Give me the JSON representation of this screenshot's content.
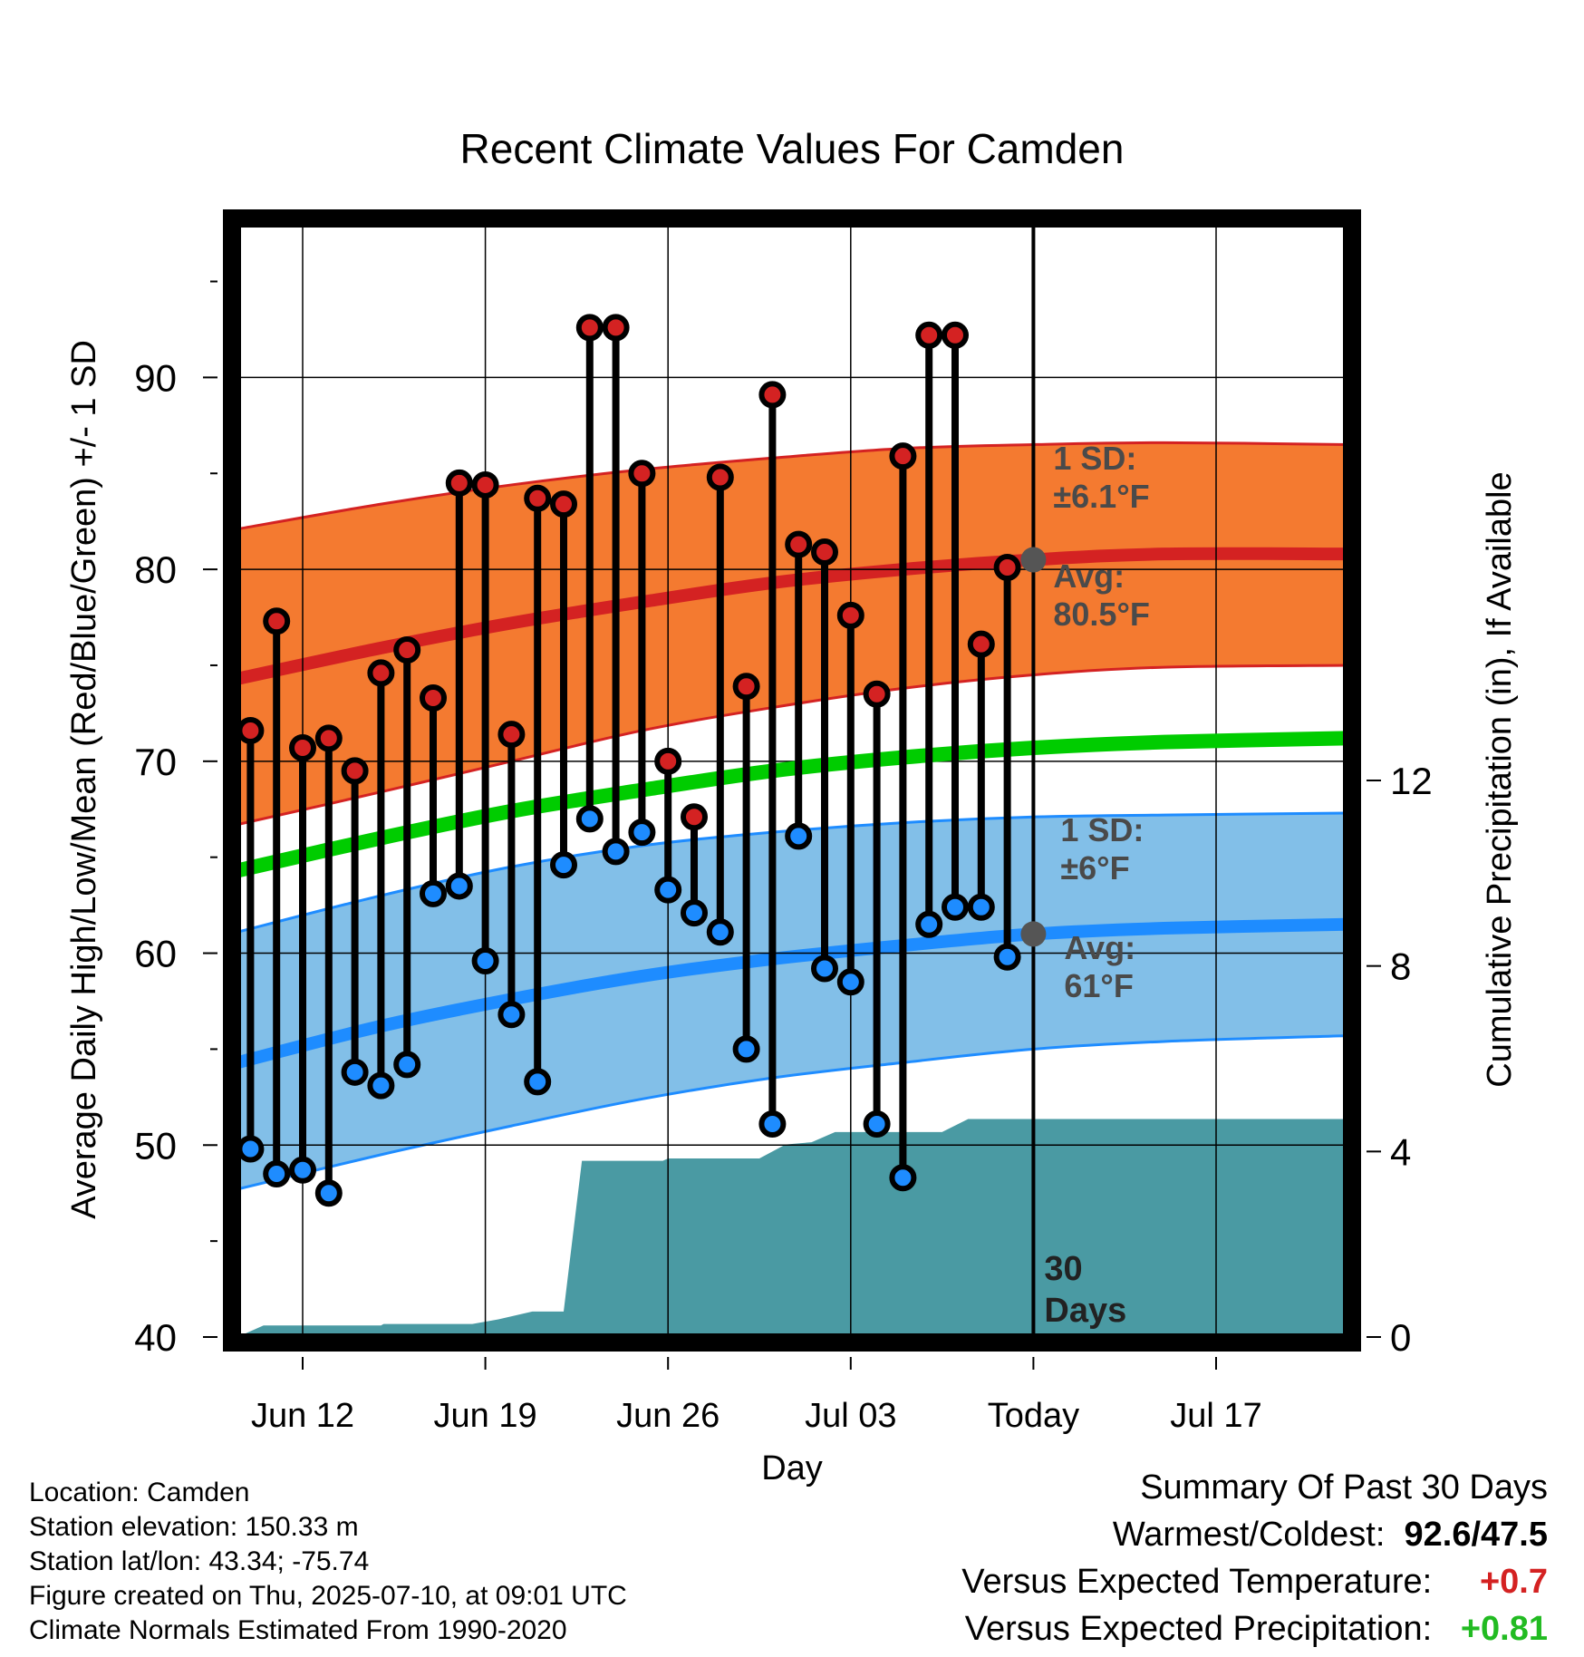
{
  "chart_data": {
    "type": "line",
    "title": "Recent Climate Values For Camden",
    "xlabel": "Day",
    "ylabel": "Average Daily High/Low/Mean (Red/Blue/Green) +/- 1 SD",
    "y2label": "Cumulative Precipitation (in), If Available",
    "ylim": [
      40,
      98
    ],
    "y2lim": [
      0,
      24
    ],
    "xlim": [
      -0.5,
      42
    ],
    "grid": true,
    "x_ticks": [
      {
        "x": 2,
        "label": "Jun 12"
      },
      {
        "x": 9,
        "label": "Jun 19"
      },
      {
        "x": 16,
        "label": "Jun 26"
      },
      {
        "x": 23,
        "label": "Jul 03"
      },
      {
        "x": 30,
        "label": "Today"
      },
      {
        "x": 37,
        "label": "Jul 17"
      }
    ],
    "y_ticks": [
      40,
      50,
      60,
      70,
      80,
      90
    ],
    "y2_ticks": [
      0,
      4,
      8,
      12
    ],
    "today_x": 30,
    "today_label": [
      "30",
      "Days"
    ],
    "normal_high": {
      "x": [
        -0.5,
        5,
        10,
        15,
        20,
        25,
        30,
        35,
        42
      ],
      "mean": [
        74.3,
        75.9,
        77.2,
        78.3,
        79.3,
        80.0,
        80.5,
        80.8,
        80.8
      ],
      "upper": [
        82.1,
        83.4,
        84.4,
        85.2,
        85.8,
        86.3,
        86.5,
        86.6,
        86.5
      ],
      "lower": [
        66.7,
        68.4,
        70.0,
        71.6,
        72.8,
        73.8,
        74.5,
        74.9,
        75.0
      ]
    },
    "normal_low": {
      "x": [
        -0.5,
        5,
        10,
        15,
        20,
        25,
        30,
        35,
        42
      ],
      "mean": [
        54.3,
        56.2,
        57.6,
        58.8,
        59.7,
        60.4,
        61.0,
        61.3,
        61.5
      ],
      "upper": [
        61.1,
        63.0,
        64.5,
        65.6,
        66.3,
        66.8,
        67.1,
        67.2,
        67.3
      ],
      "lower": [
        47.7,
        49.5,
        51.0,
        52.4,
        53.5,
        54.3,
        55.0,
        55.4,
        55.7
      ]
    },
    "normal_mean": {
      "x": [
        -0.5,
        5,
        10,
        15,
        20,
        25,
        30,
        35,
        42
      ],
      "values": [
        64.3,
        66.0,
        67.4,
        68.5,
        69.5,
        70.2,
        70.7,
        71.0,
        71.2
      ]
    },
    "daily": {
      "x": [
        0,
        1,
        2,
        3,
        4,
        5,
        6,
        7,
        8,
        9,
        10,
        11,
        12,
        13,
        14,
        15,
        16,
        17,
        18,
        19,
        20,
        21,
        22,
        23,
        24,
        25,
        26,
        27,
        28,
        29
      ],
      "high": [
        71.6,
        77.3,
        70.7,
        71.2,
        69.5,
        74.6,
        75.8,
        73.3,
        84.5,
        84.4,
        71.4,
        83.7,
        83.4,
        92.6,
        92.6,
        85.0,
        70.0,
        67.1,
        84.8,
        73.9,
        89.1,
        81.3,
        80.9,
        77.6,
        73.5,
        85.9,
        92.2,
        92.2,
        76.1,
        80.1
      ],
      "low": [
        49.8,
        48.5,
        48.7,
        47.5,
        53.8,
        53.1,
        54.2,
        63.1,
        63.5,
        59.6,
        56.8,
        53.3,
        64.6,
        67.0,
        65.3,
        66.3,
        63.3,
        62.1,
        61.1,
        55.0,
        51.1,
        66.1,
        59.2,
        58.5,
        51.1,
        48.3,
        61.5,
        62.4,
        62.4,
        59.8
      ]
    },
    "precip": {
      "x": [
        -0.5,
        0.5,
        5.0,
        5.1,
        8.5,
        9.5,
        10.8,
        12.0,
        12.7,
        15.8,
        16.0,
        19.5,
        20.5,
        21.5,
        22.4,
        23.5,
        26.5,
        27.5,
        42
      ],
      "y": [
        0,
        0.25,
        0.25,
        0.28,
        0.28,
        0.38,
        0.55,
        0.55,
        3.8,
        3.8,
        3.85,
        3.85,
        4.15,
        4.2,
        4.42,
        4.42,
        4.42,
        4.7,
        4.7
      ]
    },
    "annotations": {
      "high_sd_label": [
        "1 SD:",
        "±6.1°F"
      ],
      "high_avg_label": [
        "Avg:",
        "80.5°F"
      ],
      "high_avg_value": 80.5,
      "low_sd_label": [
        "1 SD:",
        "±6°F"
      ],
      "low_avg_label": [
        "Avg:",
        "61°F"
      ],
      "low_avg_value": 61.0
    },
    "colors": {
      "high_band": "#f47a30",
      "high_line": "#d42222",
      "high_edge": "#d42222",
      "low_band": "#82bfe8",
      "low_line": "#1e8cff",
      "low_edge": "#1e8cff",
      "mean_line": "#00cc00",
      "precip": "#4a9aa3",
      "high_dot": "#d42222",
      "low_dot": "#1e8cff",
      "avg_marker": "#555555",
      "annotation_text": "#4a4a4a"
    }
  },
  "info": {
    "location": "Location: Camden",
    "elevation": "Station elevation: 150.33 m",
    "latlon": "Station lat/lon: 43.34; -75.74",
    "created": "Figure created on Thu, 2025-07-10, at 09:01 UTC",
    "normals": "Climate Normals Estimated From 1990-2020"
  },
  "summary": {
    "heading": "Summary Of Past 30 Days",
    "warm_cold_label": "Warmest/Coldest:",
    "warm_cold_value": "92.6/47.5",
    "temp_label": "Versus Expected Temperature:",
    "temp_value": "+0.7",
    "temp_color": "#d42222",
    "precip_label": "Versus Expected Precipitation:",
    "precip_value": "+0.81",
    "precip_color": "#22bb22"
  }
}
